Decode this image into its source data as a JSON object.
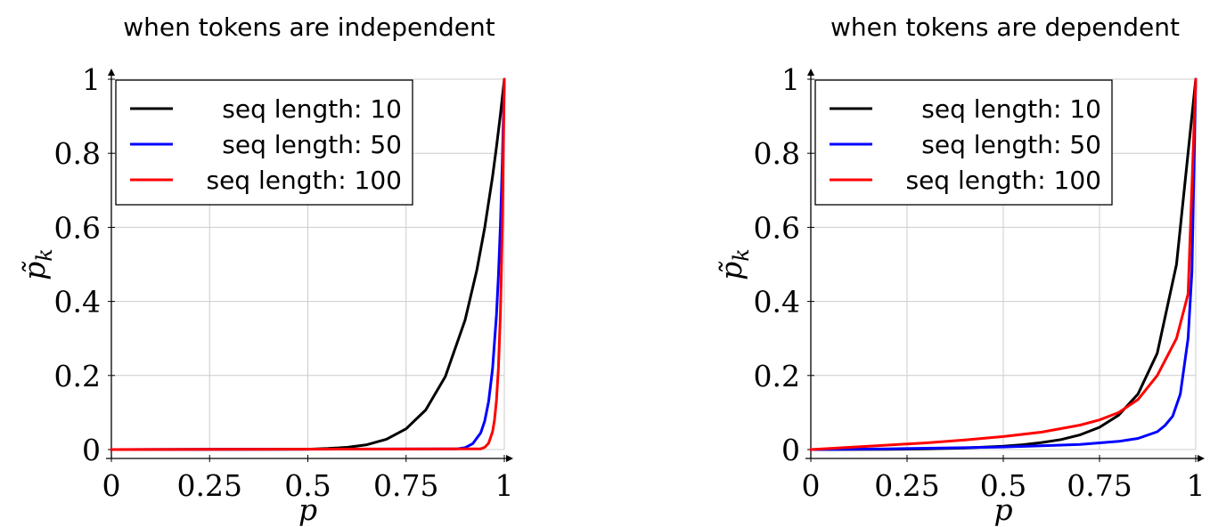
{
  "chart_data": [
    {
      "type": "line",
      "title": "when tokens are independent",
      "xlabel": "p",
      "ylabel": "p̃",
      "ylabel_sub": "k",
      "xlim": [
        0,
        1
      ],
      "ylim": [
        0,
        1
      ],
      "xticks": [
        "0",
        "0.25",
        "0.5",
        "0.75",
        "1"
      ],
      "yticks": [
        "0",
        "0.2",
        "0.4",
        "0.6",
        "0.8",
        "1"
      ],
      "grid": true,
      "legend_position": "top-left",
      "series": [
        {
          "name": "seq length:  10",
          "color": "#000000",
          "x": [
            0,
            0.5,
            0.55,
            0.6,
            0.65,
            0.7,
            0.75,
            0.8,
            0.85,
            0.9,
            0.93,
            0.95,
            0.97,
            0.98,
            0.99,
            1
          ],
          "y": [
            0,
            0.001,
            0.003,
            0.006,
            0.013,
            0.028,
            0.056,
            0.107,
            0.197,
            0.349,
            0.484,
            0.599,
            0.737,
            0.817,
            0.904,
            1
          ]
        },
        {
          "name": "seq length:  50",
          "color": "#0000ff",
          "x": [
            0,
            0.88,
            0.9,
            0.92,
            0.94,
            0.95,
            0.96,
            0.97,
            0.98,
            0.985,
            0.99,
            0.995,
            1
          ],
          "y": [
            0,
            0.002,
            0.005,
            0.016,
            0.045,
            0.077,
            0.13,
            0.218,
            0.364,
            0.47,
            0.605,
            0.778,
            1
          ]
        },
        {
          "name": "seq length: 100",
          "color": "#ff0000",
          "x": [
            0,
            0.94,
            0.95,
            0.96,
            0.97,
            0.975,
            0.98,
            0.985,
            0.99,
            0.995,
            1
          ],
          "y": [
            0,
            0.002,
            0.006,
            0.017,
            0.048,
            0.08,
            0.133,
            0.221,
            0.366,
            0.606,
            1
          ]
        }
      ]
    },
    {
      "type": "line",
      "title": "when tokens are dependent",
      "xlabel": "p",
      "ylabel": "p̃",
      "ylabel_sub": "k",
      "xlim": [
        0,
        1
      ],
      "ylim": [
        0,
        1
      ],
      "xticks": [
        "0",
        "0.25",
        "0.5",
        "0.75",
        "1"
      ],
      "yticks": [
        "0",
        "0.2",
        "0.4",
        "0.6",
        "0.8",
        "1"
      ],
      "grid": true,
      "legend_position": "top-left",
      "series": [
        {
          "name": "seq length:  10",
          "color": "#000000",
          "x": [
            0,
            0.1,
            0.2,
            0.3,
            0.4,
            0.5,
            0.55,
            0.6,
            0.65,
            0.7,
            0.75,
            0.8,
            0.85,
            0.9,
            0.95,
            1
          ],
          "y": [
            0,
            0.0002,
            0.0007,
            0.002,
            0.004,
            0.009,
            0.013,
            0.019,
            0.027,
            0.04,
            0.06,
            0.093,
            0.15,
            0.26,
            0.5,
            1
          ]
        },
        {
          "name": "seq length:  50",
          "color": "#0000ff",
          "x": [
            0,
            0.2,
            0.4,
            0.5,
            0.6,
            0.7,
            0.8,
            0.85,
            0.9,
            0.92,
            0.94,
            0.96,
            0.98,
            0.99,
            1
          ],
          "y": [
            0,
            0.002,
            0.005,
            0.007,
            0.01,
            0.014,
            0.022,
            0.03,
            0.048,
            0.065,
            0.09,
            0.15,
            0.3,
            0.48,
            1
          ]
        },
        {
          "name": "seq length: 100",
          "color": "#ff0000",
          "x": [
            0,
            0.1,
            0.2,
            0.3,
            0.4,
            0.5,
            0.6,
            0.7,
            0.75,
            0.8,
            0.85,
            0.9,
            0.95,
            0.98,
            1
          ],
          "y": [
            0,
            0.006,
            0.012,
            0.018,
            0.026,
            0.035,
            0.047,
            0.066,
            0.08,
            0.1,
            0.135,
            0.2,
            0.3,
            0.42,
            1
          ]
        }
      ]
    }
  ]
}
